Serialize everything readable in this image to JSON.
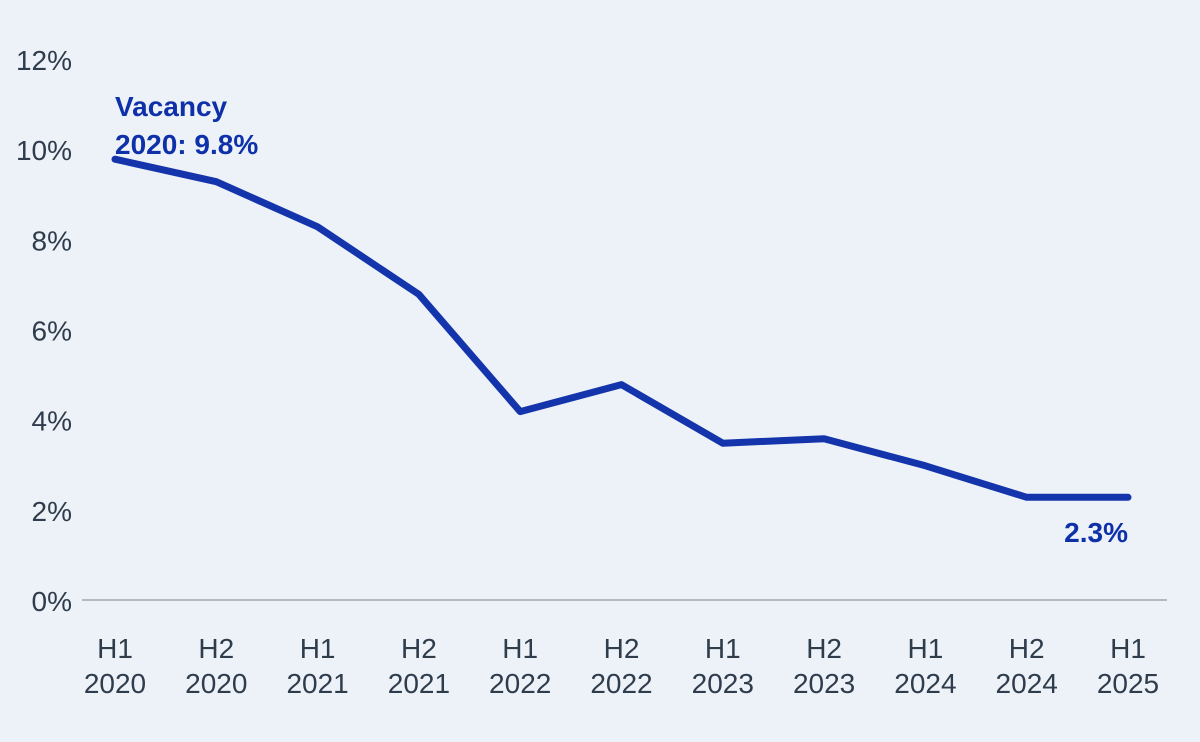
{
  "chart_data": {
    "type": "line",
    "title": "",
    "categories": [
      {
        "period": "H1",
        "year": "2020"
      },
      {
        "period": "H2",
        "year": "2020"
      },
      {
        "period": "H1",
        "year": "2021"
      },
      {
        "period": "H2",
        "year": "2021"
      },
      {
        "period": "H1",
        "year": "2022"
      },
      {
        "period": "H2",
        "year": "2022"
      },
      {
        "period": "H1",
        "year": "2023"
      },
      {
        "period": "H2",
        "year": "2023"
      },
      {
        "period": "H1",
        "year": "2024"
      },
      {
        "period": "H2",
        "year": "2024"
      },
      {
        "period": "H1",
        "year": "2025"
      }
    ],
    "series": [
      {
        "name": "Vacancy",
        "values": [
          9.8,
          9.3,
          8.3,
          6.8,
          4.2,
          4.8,
          3.5,
          3.6,
          3.0,
          2.3,
          2.3
        ]
      }
    ],
    "ylim": [
      0,
      12
    ],
    "yticks": [
      {
        "value": 0,
        "label": "0%"
      },
      {
        "value": 2,
        "label": "2%"
      },
      {
        "value": 4,
        "label": "4%"
      },
      {
        "value": 6,
        "label": "6%"
      },
      {
        "value": 8,
        "label": "8%"
      },
      {
        "value": 10,
        "label": "10%"
      },
      {
        "value": 12,
        "label": "12%"
      }
    ],
    "grid": "baseline_only",
    "legend": "none",
    "annotations": {
      "start": {
        "line1": "Vacancy",
        "line2": "2020: 9.8%"
      },
      "end": {
        "text": "2.3%"
      }
    }
  },
  "colors": {
    "background": "#edf1f8",
    "line": "#1334ab",
    "annotation_text": "#0e30a9",
    "axis_text": "#2e3c4c",
    "baseline": "#b3bac3"
  }
}
